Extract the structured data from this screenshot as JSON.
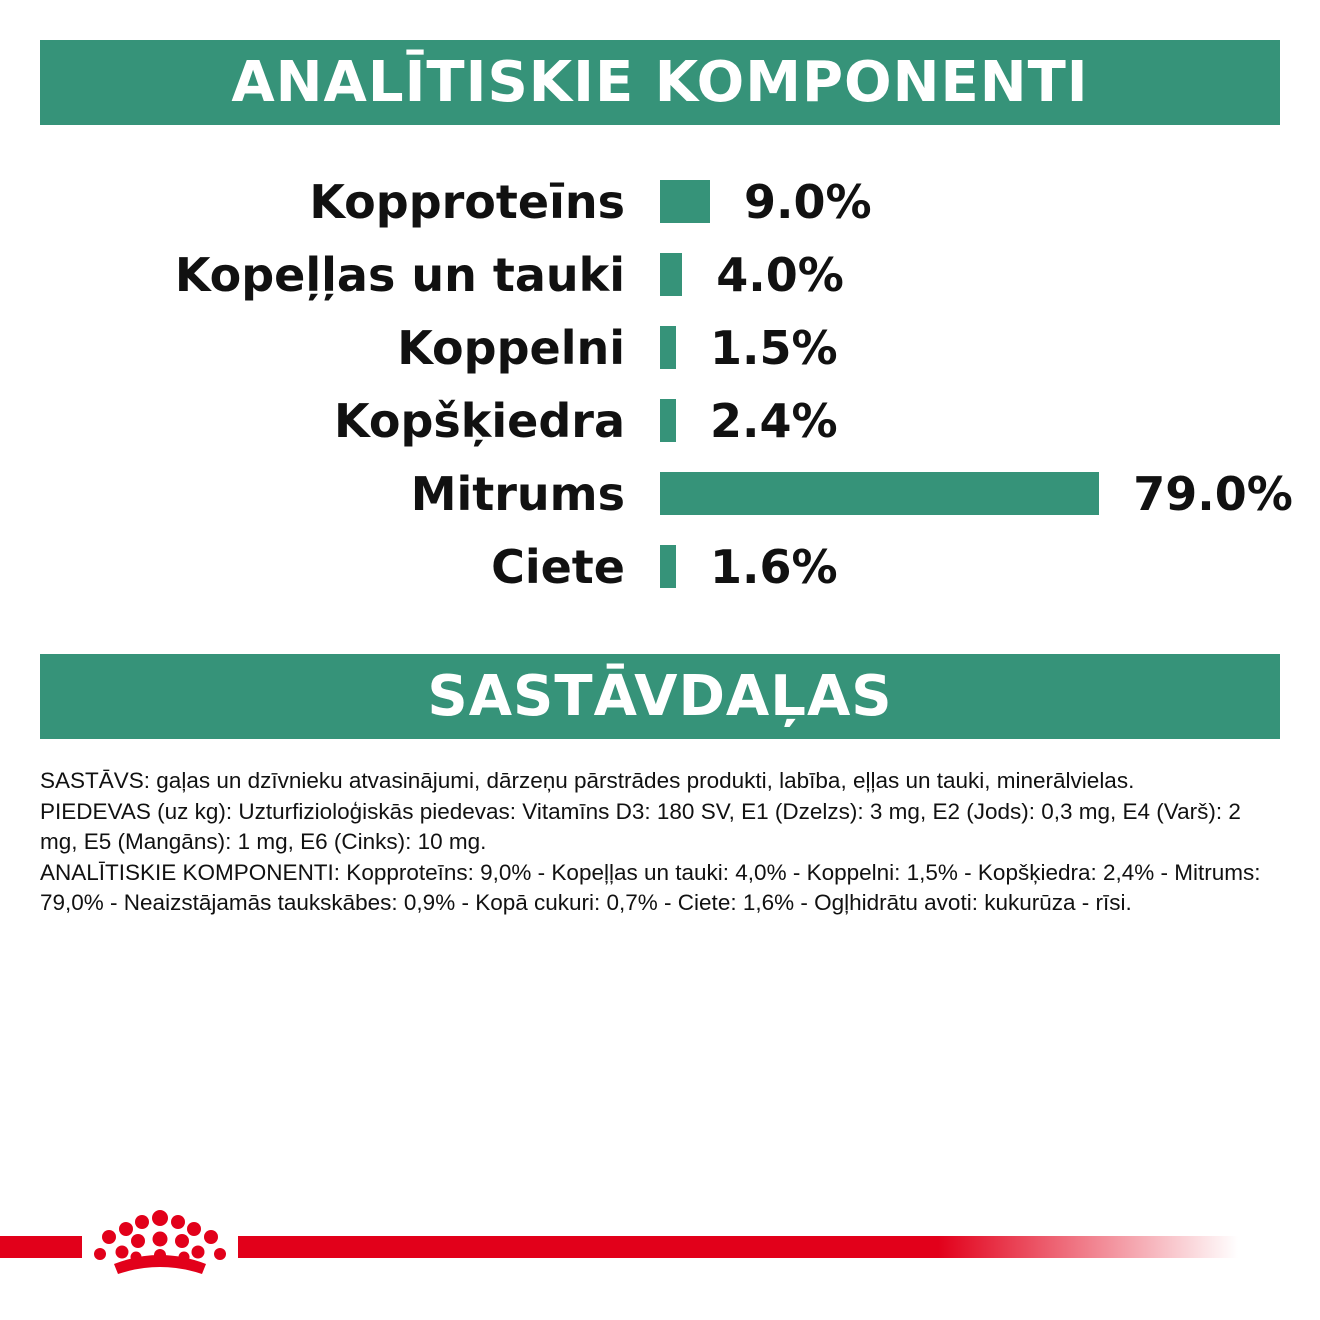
{
  "banners": {
    "analytics": "ANALĪTISKIE KOMPONENTI",
    "ingredients": "SASTĀVDAĻAS"
  },
  "chart_data": {
    "type": "bar",
    "orientation": "horizontal",
    "categories": [
      "Kopproteīns",
      "Kopeļļas un tauki",
      "Koppelni",
      "Kopšķiedra",
      "Mitrums",
      "Ciete"
    ],
    "values": [
      9.0,
      4.0,
      1.5,
      2.4,
      79.0,
      1.6
    ],
    "value_labels": [
      "9.0%",
      "4.0%",
      "1.5%",
      "2.4%",
      "79.0%",
      "1.6%"
    ],
    "unit": "%",
    "color": "#369379",
    "grid": false,
    "legend": "none"
  },
  "composition": {
    "para1": "SASTĀVS: gaļas un dzīvnieku atvasinājumi, dārzeņu pārstrādes produkti, labība, eļļas un tauki, minerālvielas.",
    "para2": "PIEDEVAS (uz kg): Uzturfizioloģiskās piedevas: Vitamīns D3: 180 SV, E1 (Dzelzs): 3 mg, E2 (Jods): 0,3 mg, E4 (Varš): 2 mg, E5 (Mangāns): 1 mg, E6 (Cinks): 10 mg.",
    "para3": "ANALĪTISKIE KOMPONENTI: Kopproteīns: 9,0% - Kopeļļas un tauki: 4,0% - Koppelni: 1,5% - Kopšķiedra: 2,4% - Mitrums: 79,0% - Neaizstājamās taukskābes: 0,9% - Kopā cukuri: 0,7% - Ciete: 1,6% - Ogļhidrātu avoti: kukurūza - rīsi."
  },
  "colors": {
    "brand_green": "#369379",
    "brand_red": "#e2001a"
  },
  "icons": {
    "logo": "royal-crown-logo"
  }
}
